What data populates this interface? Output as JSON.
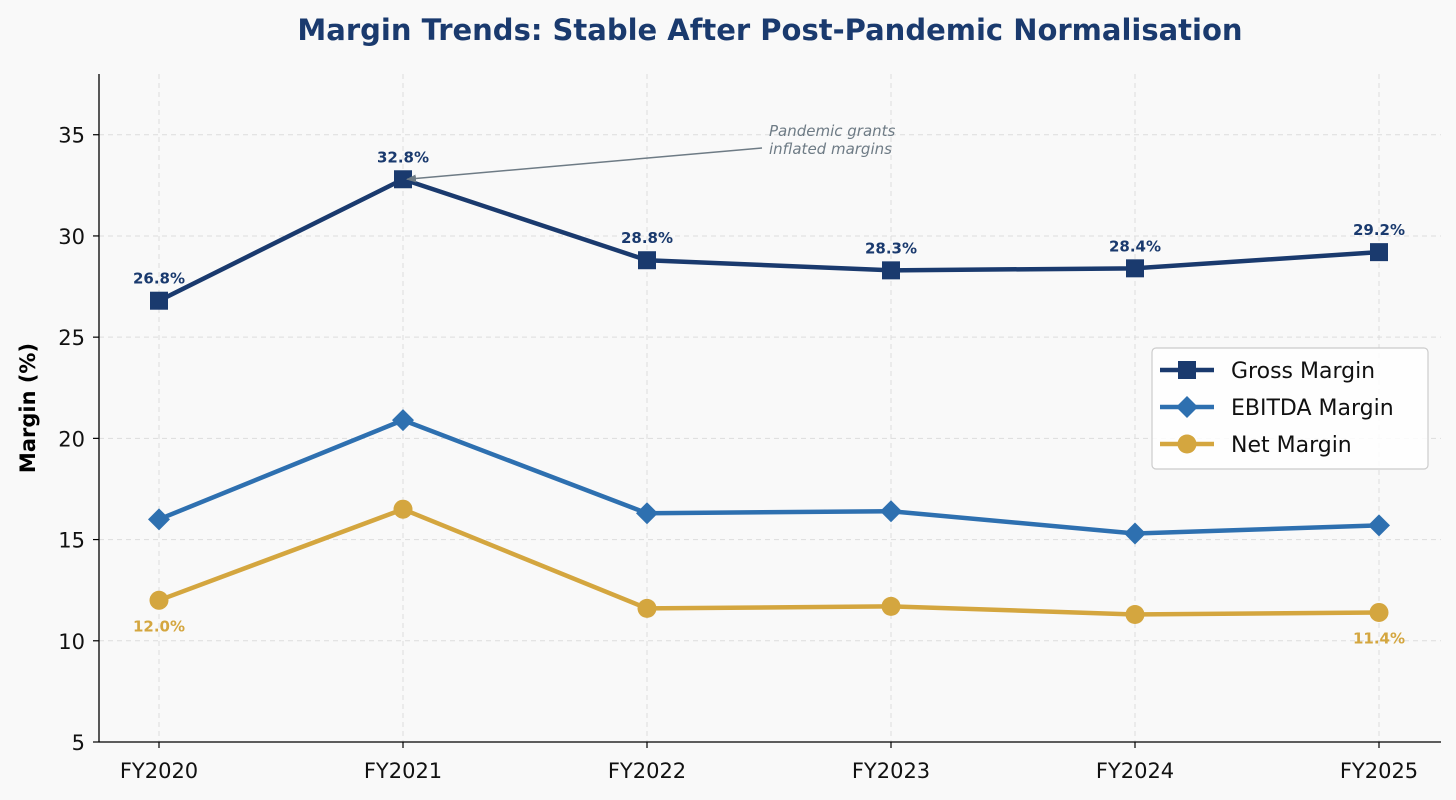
{
  "chart_data": {
    "type": "line",
    "title": "Margin Trends: Stable After Post-Pandemic Normalisation",
    "xlabel": "",
    "ylabel": "Margin (%)",
    "categories": [
      "FY2020",
      "FY2021",
      "FY2022",
      "FY2023",
      "FY2024",
      "FY2025"
    ],
    "ylim": [
      5,
      38
    ],
    "yticks": [
      5,
      10,
      15,
      20,
      25,
      30,
      35
    ],
    "grid": true,
    "legend_position": "right",
    "series": [
      {
        "name": "Gross Margin",
        "values": [
          26.8,
          32.8,
          28.8,
          28.3,
          28.4,
          29.2
        ],
        "color": "#1a3a6e",
        "marker": "square"
      },
      {
        "name": "EBITDA Margin",
        "values": [
          16.0,
          20.9,
          16.3,
          16.4,
          15.3,
          15.7
        ],
        "color": "#2e70b0",
        "marker": "diamond"
      },
      {
        "name": "Net Margin",
        "values": [
          12.0,
          16.5,
          11.6,
          11.7,
          11.3,
          11.4
        ],
        "color": "#d4a63f",
        "marker": "circle"
      }
    ],
    "data_labels": [
      {
        "series": 0,
        "index": 0,
        "text": "26.8%",
        "placement": "above"
      },
      {
        "series": 0,
        "index": 1,
        "text": "32.8%",
        "placement": "above"
      },
      {
        "series": 0,
        "index": 2,
        "text": "28.8%",
        "placement": "above"
      },
      {
        "series": 0,
        "index": 3,
        "text": "28.3%",
        "placement": "above"
      },
      {
        "series": 0,
        "index": 4,
        "text": "28.4%",
        "placement": "above"
      },
      {
        "series": 0,
        "index": 5,
        "text": "29.2%",
        "placement": "above"
      },
      {
        "series": 2,
        "index": 0,
        "text": "12.0%",
        "placement": "below"
      },
      {
        "series": 2,
        "index": 5,
        "text": "11.4%",
        "placement": "below"
      }
    ],
    "annotation": {
      "lines": [
        "Pandemic grants",
        "inflated margins"
      ],
      "series": 0,
      "index": 1
    },
    "colors": {
      "title": "#1a3a6e",
      "annotation": "#6e7b85",
      "grid": "#dddddd",
      "background": "#f9f9f9"
    }
  }
}
